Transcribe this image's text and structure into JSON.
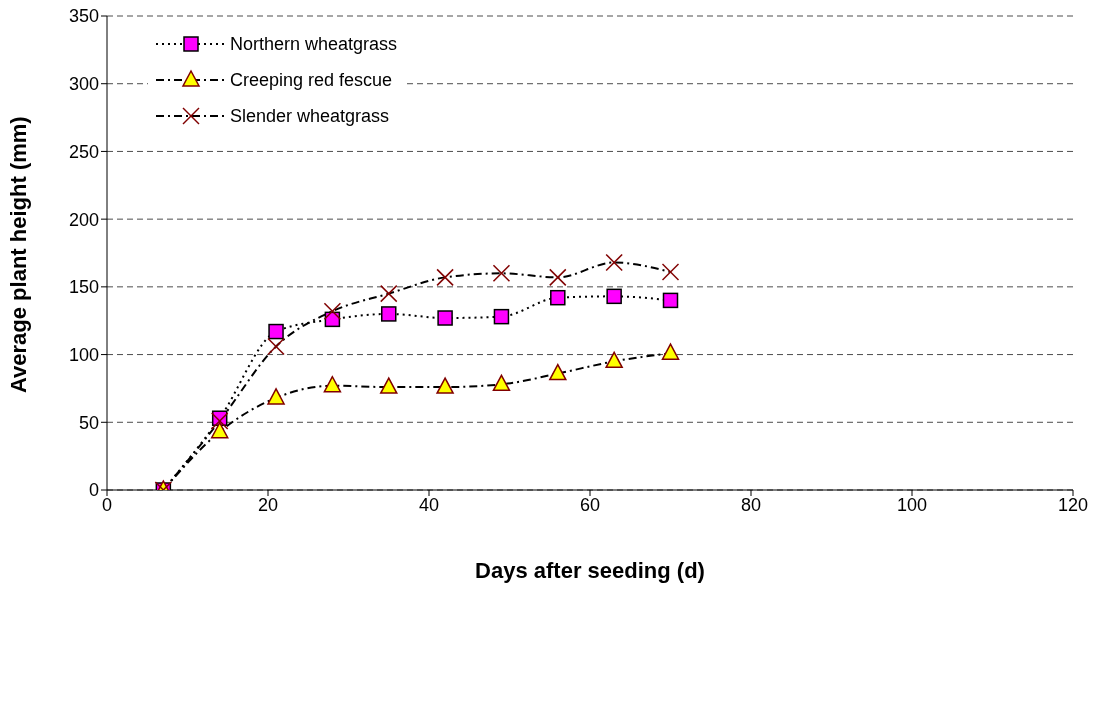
{
  "chart_data": {
    "type": "line",
    "xlabel": "Days after seeding (d)",
    "ylabel": "Average plant height (mm)",
    "x": [
      7,
      14,
      21,
      28,
      35,
      42,
      49,
      56,
      63,
      70
    ],
    "xlim": [
      0,
      120
    ],
    "xticks": [
      0,
      20,
      40,
      60,
      80,
      100,
      120
    ],
    "ylim": [
      0,
      350
    ],
    "yticks": [
      0,
      50,
      100,
      150,
      200,
      250,
      300,
      350
    ],
    "grid": "y",
    "legend": "top left",
    "series": [
      {
        "name": "Northern wheatgrass",
        "color": "#ff00ff",
        "marker": "square",
        "line_style": "dotted",
        "values": [
          0,
          53,
          117,
          126,
          130,
          127,
          128,
          142,
          143,
          140
        ]
      },
      {
        "name": "Creeping red fescue",
        "color": "#ffff00",
        "marker": "triangle",
        "line_style": "dashed",
        "values": [
          0,
          43,
          68,
          77,
          76,
          76,
          78,
          86,
          95,
          101
        ]
      },
      {
        "name": "Slender wheatgrass",
        "color": "#800000",
        "marker": "cross",
        "line_style": "dashed",
        "values": [
          0,
          51,
          106,
          132,
          145,
          157,
          160,
          157,
          168,
          161
        ]
      }
    ]
  }
}
